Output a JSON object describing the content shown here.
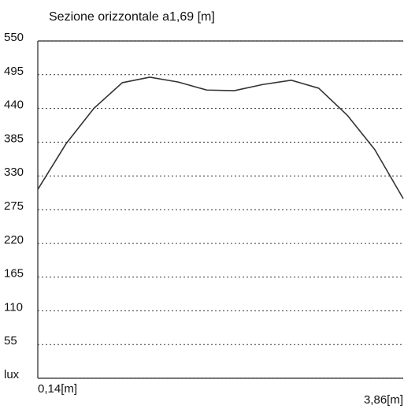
{
  "chart_data": {
    "type": "line",
    "title": "Sezione orizzontale a1,69 [m]",
    "x": [
      0.14,
      0.43,
      0.71,
      1.0,
      1.28,
      1.57,
      1.86,
      2.14,
      2.43,
      2.72,
      3.0,
      3.29,
      3.57,
      3.86
    ],
    "series": [
      {
        "color": "#333333",
        "values": [
          308,
          383,
          440,
          482,
          491,
          483,
          470,
          469,
          479,
          486,
          473,
          429,
          373,
          293
        ]
      }
    ],
    "xlim": [
      0.14,
      3.86
    ],
    "xticks": [
      {
        "value": 0.14,
        "label": "0,14[m]"
      },
      {
        "value": 3.86,
        "label": "3,86[m]"
      }
    ],
    "ylim": [
      0,
      550
    ],
    "yticks": [
      {
        "value": 0,
        "label": "lux"
      },
      55,
      110,
      165,
      220,
      275,
      330,
      385,
      440,
      495,
      550
    ],
    "grid": true
  }
}
